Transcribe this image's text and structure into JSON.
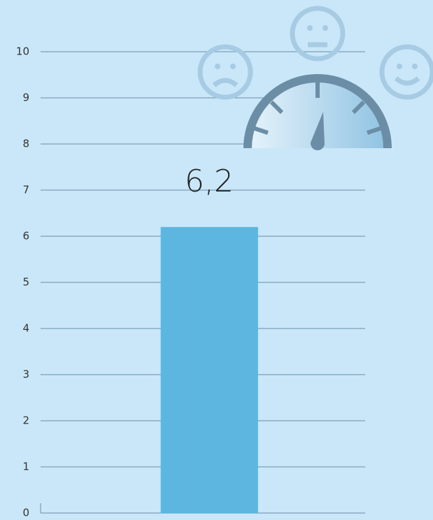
{
  "chart_data": {
    "type": "bar",
    "categories": [
      null
    ],
    "values": [
      6.2
    ],
    "value_labels": [
      "6,2"
    ],
    "color": "#5cb6e0",
    "ylim": [
      0,
      10
    ],
    "yticks": [
      0,
      1,
      2,
      3,
      4,
      5,
      6,
      7,
      8,
      9,
      10
    ],
    "grid": true
  }
}
